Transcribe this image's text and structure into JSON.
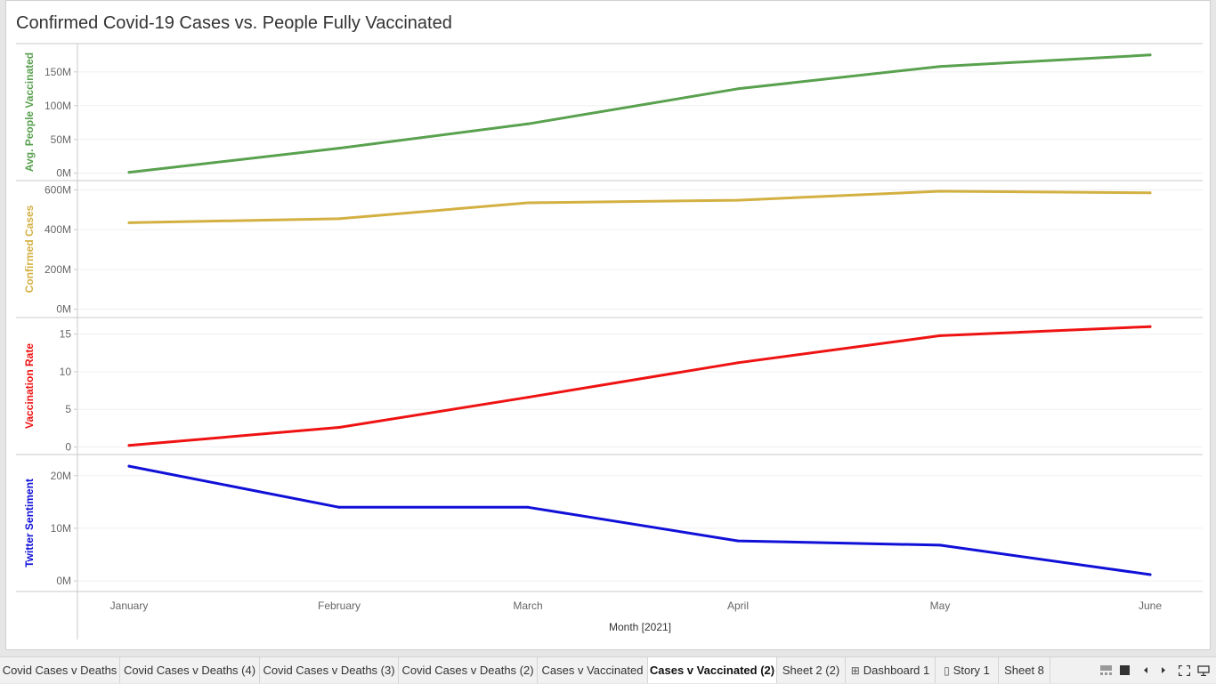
{
  "title": "Confirmed Covid-19 Cases vs. People Fully Vaccinated",
  "chart_data": {
    "type": "line",
    "title": "Confirmed Covid-19 Cases vs. People Fully Vaccinated",
    "xlabel": "Month [2021]",
    "categories": [
      "January",
      "February",
      "March",
      "April",
      "May",
      "June"
    ],
    "grid": true,
    "panels": [
      {
        "name": "Avg. People Vaccinated",
        "color": "#59a14f",
        "ylim": [
          -3000000,
          184000000
        ],
        "ticks": [
          0,
          50000000,
          100000000,
          150000000
        ],
        "tick_labels": [
          "0M",
          "50M",
          "100M",
          "150M"
        ],
        "values": [
          1200000,
          37000000,
          73000000,
          125000000,
          158000000,
          175000000
        ]
      },
      {
        "name": "Confirmed Cases",
        "color": "#d3b042",
        "ylim": [
          -15000000,
          620000000
        ],
        "ticks": [
          0,
          200000000,
          400000000,
          600000000
        ],
        "tick_labels": [
          "0M",
          "200M",
          "400M",
          "600M"
        ],
        "values": [
          435000000,
          455000000,
          535000000,
          548000000,
          593000000,
          585000000
        ]
      },
      {
        "name": "Vaccination Rate",
        "color": "#ef1212",
        "ylim": [
          -0.3,
          16.5
        ],
        "ticks": [
          0,
          5,
          10,
          15
        ],
        "tick_labels": [
          "0",
          "5",
          "10",
          "15"
        ],
        "values": [
          0.2,
          2.6,
          6.6,
          11.2,
          14.8,
          16.0
        ]
      },
      {
        "name": "Twitter Sentiment",
        "color": "#1010d8",
        "ylim": [
          -1000000,
          23000000
        ],
        "ticks": [
          0,
          10000000,
          20000000
        ],
        "tick_labels": [
          "0M",
          "10M",
          "20M"
        ],
        "values": [
          21800000,
          14000000,
          14000000,
          7600000,
          6800000,
          1200000
        ]
      }
    ]
  },
  "tabs": [
    {
      "label": "Covid Cases v Deaths",
      "icon": ""
    },
    {
      "label": "Covid Cases v Deaths (4)",
      "icon": ""
    },
    {
      "label": "Covid Cases v Deaths (3)",
      "icon": ""
    },
    {
      "label": "Covid Cases v Deaths (2)",
      "icon": ""
    },
    {
      "label": "Cases v Vaccinated",
      "icon": ""
    },
    {
      "label": "Cases v Vaccinated (2)",
      "icon": "",
      "active": true
    },
    {
      "label": "Sheet 2 (2)",
      "icon": ""
    },
    {
      "label": "Dashboard 1",
      "icon": "dashboard-icon"
    },
    {
      "label": "Story 1",
      "icon": "story-icon"
    },
    {
      "label": "Sheet 8",
      "icon": ""
    }
  ],
  "controls": [
    "filmstrip-icon",
    "grid-view-icon",
    "prev-sheet-icon",
    "next-sheet-icon",
    "fullscreen-icon",
    "presentation-icon"
  ]
}
